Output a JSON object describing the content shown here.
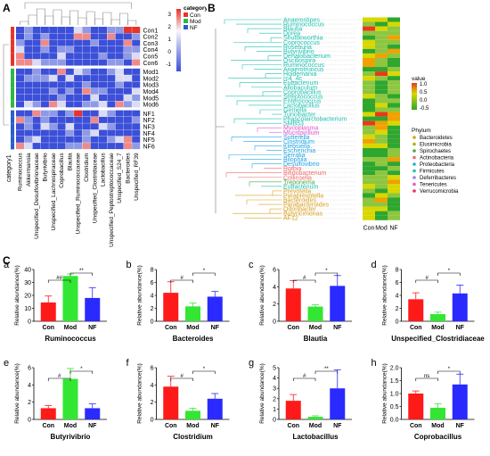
{
  "panels": {
    "A": "A",
    "B": "B",
    "C": "C"
  },
  "heatmap_a": {
    "legend_title": "category1",
    "legend_items": [
      "Con",
      "Mod",
      "NF"
    ],
    "legend_colors": [
      "#e8332a",
      "#2fb54a",
      "#2b5fc8"
    ],
    "scale_ticks": [
      "3",
      "2",
      "1",
      "0",
      "-1"
    ],
    "rows": [
      "Con1",
      "Con2",
      "Con3",
      "Con4",
      "Con5",
      "Con6",
      "Mod1",
      "Mod2",
      "Mod3",
      "Mod4",
      "Mod5",
      "Mod6",
      "NF1",
      "NF2",
      "NF3",
      "NF4",
      "NF5",
      "NF6"
    ],
    "cols": [
      "Ruminococcus",
      "Akkermansia",
      "Unspecified_Desulfovibrionaceae",
      "Butyrivibrio",
      "Unspecified_Lachnospiraceae",
      "Coprobacillus",
      "Blautia",
      "Unspecified_Ruminococcaceae",
      "Clostridium",
      "Unspecified_Clostridiaceae",
      "Lactobacillus",
      "Unspecified_Peptostreptococcaceae",
      "Unspecified_S24_7",
      "Bacteroides",
      "Unspecified_RF39"
    ],
    "corner_label": "category1"
  },
  "heatmap_b": {
    "taxa": [
      "Anaerostipes",
      "Ruminococcus",
      "Blautia",
      "Dorea",
      "Shuttleworthia",
      "Coprococcus",
      "Roseburia",
      "Butyrivibrio",
      "Dehalobacterium",
      "Oscillospira",
      "Ruminococcus",
      "Anaerotruncus",
      "Holdemania",
      "rc4_4c",
      "Eubacterium",
      "Allobaculum",
      "Coprobacillus",
      "Streptococcus",
      "Enterococcus",
      "Lactobacillus",
      "Gemella",
      "Turicibacter",
      "Phascolarctobacterium",
      "SMB53",
      "Mycoplasma",
      "Mucispirillum",
      "Sutterella",
      "Clostridium",
      "Klebsiella",
      "Escherichia",
      "Serratia",
      "Bilophila",
      "Desulfovibrio",
      "Rothia",
      "Bifidobacterium",
      "Collinsella",
      "Treponema",
      "Eubacterium",
      "Prevotella",
      "Paraprevotella",
      "Bacteroides",
      "Parabacteroides",
      "Odoribacter",
      "Butyricimonas",
      "AF12"
    ],
    "taxa_colors": [
      "#1fc1b0",
      "#1fc1b0",
      "#1fc1b0",
      "#1fc1b0",
      "#1fc1b0",
      "#1fc1b0",
      "#1fc1b0",
      "#1fc1b0",
      "#1fc1b0",
      "#1fc1b0",
      "#1fc1b0",
      "#1fc1b0",
      "#1fc1b0",
      "#1fc1b0",
      "#1fc1b0",
      "#1fc1b0",
      "#1fc1b0",
      "#1fc1b0",
      "#1fc1b0",
      "#1fc1b0",
      "#1fc1b0",
      "#1fc1b0",
      "#1fc1b0",
      "#1fc1b0",
      "#e05ad0",
      "#e05ad0",
      "#27a7e5",
      "#27a7e5",
      "#27a7e5",
      "#27a7e5",
      "#27a7e5",
      "#27a7e5",
      "#27a7e5",
      "#f06a6a",
      "#f06a6a",
      "#f06a6a",
      "#4aa84a",
      "#1fc1b0",
      "#d9a020",
      "#d9a020",
      "#d9a020",
      "#d9a020",
      "#d9a020",
      "#d9a020",
      "#d9a020"
    ],
    "columns": [
      "Con",
      "Mod",
      "NF"
    ],
    "value_title": "value",
    "value_ticks": [
      "1.0",
      "0.5",
      "0.0",
      "-0.5"
    ],
    "phylum_title": "Phylum",
    "phyla": [
      {
        "name": "Bacteroidetes",
        "color": "#d9a020"
      },
      {
        "name": "Elusimicrobia",
        "color": "#b0b000"
      },
      {
        "name": "Spirochaetes",
        "color": "#4aa84a"
      },
      {
        "name": "Actinobacteria",
        "color": "#f06a6a"
      },
      {
        "name": "Proteobacteria",
        "color": "#27a7e5"
      },
      {
        "name": "Firmicutes",
        "color": "#1fc1b0"
      },
      {
        "name": "Deferribacteres",
        "color": "#9a7fe0"
      },
      {
        "name": "Tenericutes",
        "color": "#e05ad0"
      },
      {
        "name": "Verrucomicrobia",
        "color": "#e8335a"
      }
    ]
  },
  "chart_data": [
    {
      "type": "bar",
      "sub": "a",
      "title": "Ruminococcus",
      "ylabel": "Relative abundance(%)",
      "categories": [
        "Con",
        "Mod",
        "NF"
      ],
      "values": [
        14.5,
        35,
        18
      ],
      "errors": [
        5,
        1.5,
        8
      ],
      "ylim": [
        0,
        40
      ],
      "yticks": [
        "0",
        "10",
        "20",
        "30",
        "40"
      ],
      "sig": [
        {
          "from": 0,
          "to": 1,
          "label": "##"
        },
        {
          "from": 1,
          "to": 2,
          "label": "**"
        }
      ]
    },
    {
      "type": "bar",
      "sub": "b",
      "title": "Bacteroides",
      "ylabel": "Relative abundance(%)",
      "categories": [
        "Con",
        "Mod",
        "NF"
      ],
      "values": [
        4.4,
        2.3,
        3.8
      ],
      "errors": [
        1.7,
        0.5,
        0.8
      ],
      "ylim": [
        0,
        8
      ],
      "yticks": [
        "0",
        "2",
        "4",
        "6",
        "8"
      ],
      "sig": [
        {
          "from": 0,
          "to": 1,
          "label": "#"
        },
        {
          "from": 1,
          "to": 2,
          "label": "*"
        }
      ]
    },
    {
      "type": "bar",
      "sub": "c",
      "title": "Blautia",
      "ylabel": "Relative abundance(%)",
      "categories": [
        "Con",
        "Mod",
        "NF"
      ],
      "values": [
        3.8,
        1.7,
        4.1
      ],
      "errors": [
        0.9,
        0.2,
        1.2
      ],
      "ylim": [
        0,
        6
      ],
      "yticks": [
        "0",
        "2",
        "4",
        "6"
      ],
      "sig": [
        {
          "from": 0,
          "to": 1,
          "label": "#"
        },
        {
          "from": 1,
          "to": 2,
          "label": "*"
        }
      ]
    },
    {
      "type": "bar",
      "sub": "d",
      "title": "Unspecified_Clostridiaceae",
      "ylabel": "Relative abundance(%)",
      "categories": [
        "Con",
        "Mod",
        "NF"
      ],
      "values": [
        3.4,
        1.1,
        4.3
      ],
      "errors": [
        1.0,
        0.3,
        1.3
      ],
      "ylim": [
        0,
        8
      ],
      "yticks": [
        "0",
        "2",
        "4",
        "6",
        "8"
      ],
      "sig": [
        {
          "from": 0,
          "to": 1,
          "label": "#"
        },
        {
          "from": 1,
          "to": 2,
          "label": "*"
        }
      ]
    },
    {
      "type": "bar",
      "sub": "e",
      "title": "Butyrivibrio",
      "ylabel": "Relative abundance(%)",
      "categories": [
        "Con",
        "Mod",
        "NF"
      ],
      "values": [
        1.3,
        4.7,
        1.3
      ],
      "errors": [
        0.3,
        1.2,
        0.5
      ],
      "ylim": [
        0,
        6
      ],
      "yticks": [
        "0",
        "2",
        "4",
        "6"
      ],
      "sig": [
        {
          "from": 0,
          "to": 1,
          "label": "#"
        },
        {
          "from": 1,
          "to": 2,
          "label": "*"
        }
      ]
    },
    {
      "type": "bar",
      "sub": "f",
      "title": "Clostridium",
      "ylabel": "Relative abundance(%)",
      "categories": [
        "Con",
        "Mod",
        "NF"
      ],
      "values": [
        3.8,
        1.0,
        2.4
      ],
      "errors": [
        1.2,
        0.3,
        0.6
      ],
      "ylim": [
        0,
        6
      ],
      "yticks": [
        "0",
        "2",
        "4",
        "6"
      ],
      "sig": [
        {
          "from": 0,
          "to": 1,
          "label": "#"
        },
        {
          "from": 1,
          "to": 2,
          "label": "*"
        }
      ]
    },
    {
      "type": "bar",
      "sub": "g",
      "title": "Lactobacillus",
      "ylabel": "Relative abundance(%)",
      "categories": [
        "Con",
        "Mod",
        "NF"
      ],
      "values": [
        1.8,
        0.25,
        3.0
      ],
      "errors": [
        0.6,
        0.1,
        1.8
      ],
      "ylim": [
        0,
        5
      ],
      "yticks": [
        "0",
        "1",
        "2",
        "3",
        "4",
        "5"
      ],
      "sig": [
        {
          "from": 0,
          "to": 1,
          "label": "#"
        },
        {
          "from": 1,
          "to": 2,
          "label": "**"
        }
      ]
    },
    {
      "type": "bar",
      "sub": "h",
      "title": "Coprobacillus",
      "ylabel": "Relative abundance(%)",
      "categories": [
        "Con",
        "Mod",
        "NF"
      ],
      "values": [
        1.0,
        0.45,
        1.35
      ],
      "errors": [
        0.1,
        0.15,
        0.4
      ],
      "ylim": [
        0,
        2.0
      ],
      "yticks": [
        "0.0",
        "0.5",
        "1.0",
        "1.5",
        "2.0"
      ],
      "sig": [
        {
          "from": 0,
          "to": 1,
          "label": "ns"
        },
        {
          "from": 1,
          "to": 2,
          "label": "*"
        }
      ]
    }
  ],
  "bar_colors": [
    "#ff1a1a",
    "#33e633",
    "#2a2aff"
  ]
}
